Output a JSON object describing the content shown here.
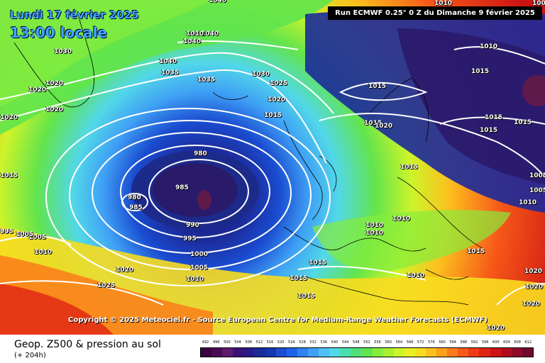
{
  "header": {
    "date_line": "Lundi 17 février 2025",
    "time_line": "13:00 locale",
    "run_info": "Run ECMWF 0.25° 0 Z du Dimanche 9 février 2025"
  },
  "copyright": "Copyright © 2025 Meteociel.fr - Source European Centre for Medium-Range Weather Forecasts (ECMWF)",
  "footer": {
    "title": "Geop. Z500 & pression au sol",
    "subtitle": "(+ 204h)"
  },
  "isobar_labels": [
    "1040",
    "1030",
    "1040",
    "1010",
    "1040",
    "1020",
    "1040",
    "1035",
    "1020",
    "1035",
    "1030",
    "1020",
    "1025",
    "1020",
    "1015",
    "980",
    "985",
    "980",
    "985",
    "990",
    "995",
    "1000",
    "1005",
    "1010",
    "1020",
    "1025",
    "1015",
    "1015",
    "1010",
    "1015",
    "1015",
    "1020",
    "1015",
    "1015",
    "1015",
    "1010",
    "1010",
    "1010",
    "1005",
    "1010",
    "1015",
    "1015",
    "1015",
    "1010",
    "1020",
    "1020",
    "1005",
    "1015",
    "1005",
    "1010",
    "1020",
    "1020",
    "1015",
    "995",
    "1000",
    "1005",
    "1010",
    "1020"
  ],
  "scale": {
    "labels": [
      "492",
      "496",
      "500",
      "504",
      "508",
      "512",
      "516",
      "520",
      "524",
      "528",
      "532",
      "536",
      "540",
      "544",
      "548",
      "552",
      "556",
      "560",
      "564",
      "568",
      "572",
      "576",
      "580",
      "584",
      "588",
      "592",
      "596",
      "600",
      "604",
      "608",
      "612"
    ],
    "colors": [
      "#3a003f",
      "#4b0b55",
      "#5e1a6b",
      "#3a1178",
      "#2a1a8a",
      "#1c2a9a",
      "#1636b0",
      "#1a4cd0",
      "#1f63e8",
      "#2f82f0",
      "#3fa0f5",
      "#4fc0f8",
      "#52d8e8",
      "#49e0b0",
      "#4fe078",
      "#62e44c",
      "#86ec3c",
      "#a8f030",
      "#cdf42a",
      "#e8f024",
      "#f8dc20",
      "#fcc01e",
      "#fca01c",
      "#fa7c1a",
      "#f65818",
      "#ee3a16",
      "#e02414",
      "#cc1414",
      "#b00c20",
      "#900a28",
      "#700830"
    ]
  }
}
